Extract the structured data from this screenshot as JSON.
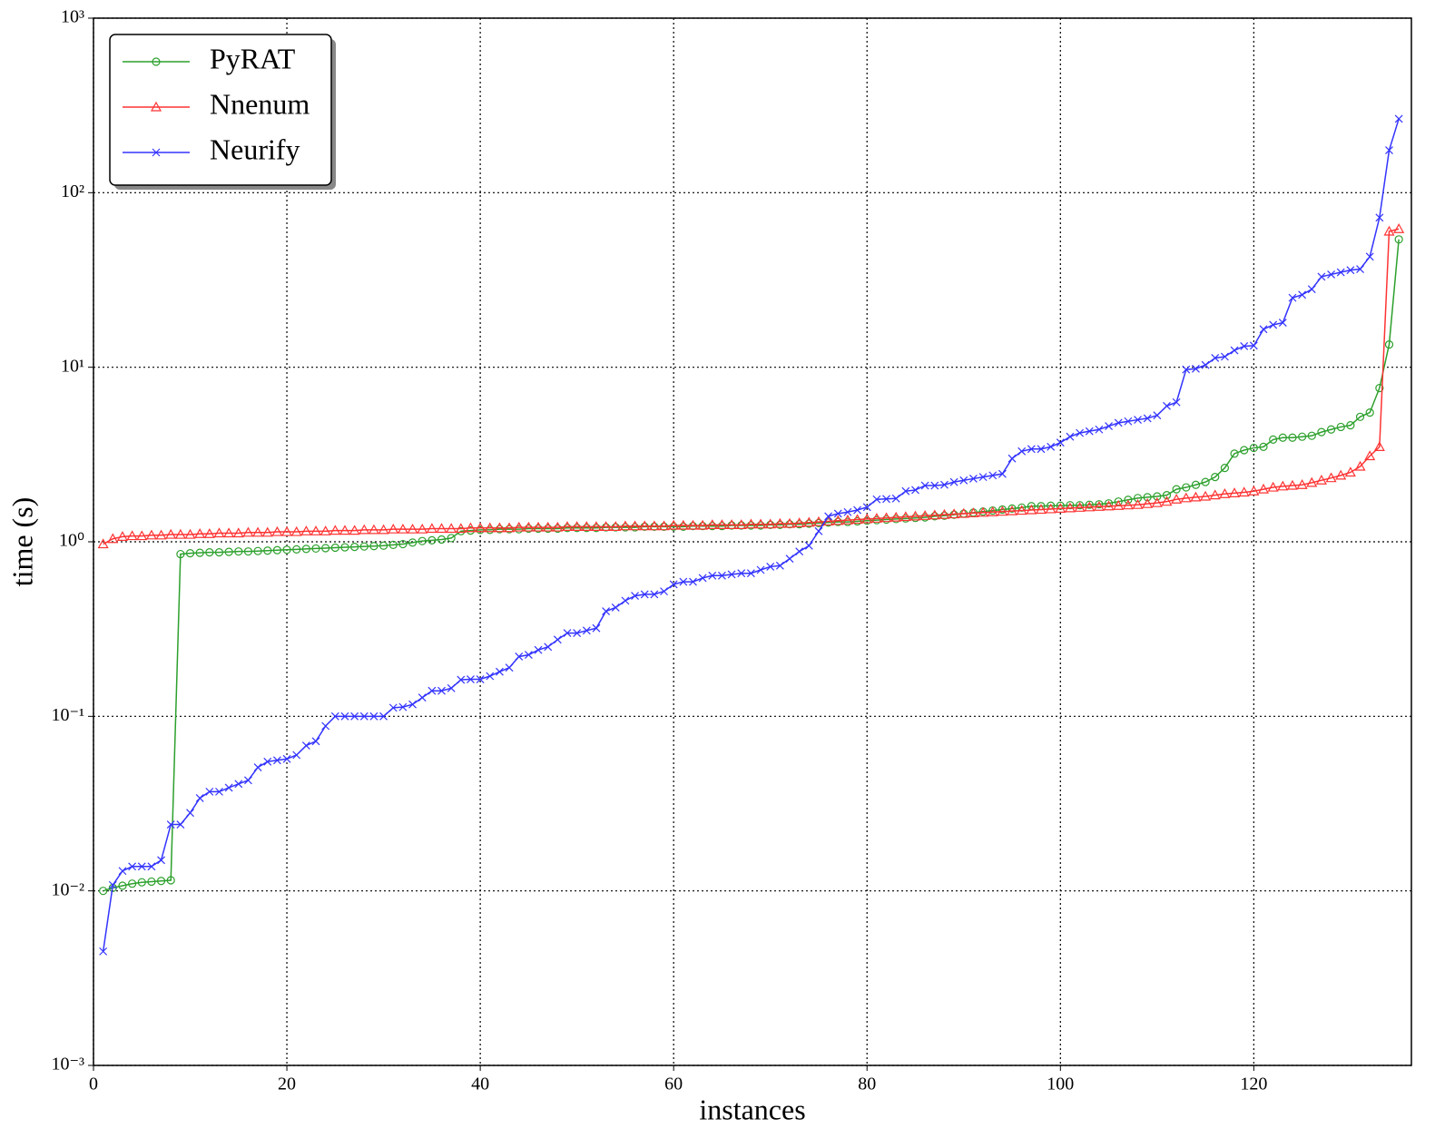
{
  "chart_data": {
    "type": "line",
    "x_label": "instances",
    "y_label": "time (s)",
    "x": [
      1,
      2,
      3,
      4,
      5,
      6,
      7,
      8,
      9,
      10,
      11,
      12,
      13,
      14,
      15,
      16,
      17,
      18,
      19,
      20,
      21,
      22,
      23,
      24,
      25,
      26,
      27,
      28,
      29,
      30,
      31,
      32,
      33,
      34,
      35,
      36,
      37,
      38,
      39,
      40,
      41,
      42,
      43,
      44,
      45,
      46,
      47,
      48,
      49,
      50,
      51,
      52,
      53,
      54,
      55,
      56,
      57,
      58,
      59,
      60,
      61,
      62,
      63,
      64,
      65,
      66,
      67,
      68,
      69,
      70,
      71,
      72,
      73,
      74,
      75,
      76,
      77,
      78,
      79,
      80,
      81,
      82,
      83,
      84,
      85,
      86,
      87,
      88,
      89,
      90,
      91,
      92,
      93,
      94,
      95,
      96,
      97,
      98,
      99,
      100,
      101,
      102,
      103,
      104,
      105,
      106,
      107,
      108,
      109,
      110,
      111,
      112,
      113,
      114,
      115,
      116,
      117,
      118,
      119,
      120,
      121,
      122,
      123,
      124,
      125,
      126,
      127,
      128,
      129,
      130,
      131,
      132,
      133,
      134,
      135
    ],
    "series": [
      {
        "name": "PyRAT",
        "color": "#2ca02c",
        "marker": "circle",
        "values": [
          0.01,
          0.0104,
          0.0107,
          0.011,
          0.0112,
          0.0113,
          0.0114,
          0.0115,
          0.85,
          0.86,
          0.865,
          0.87,
          0.87,
          0.875,
          0.88,
          0.88,
          0.885,
          0.89,
          0.895,
          0.9,
          0.905,
          0.91,
          0.915,
          0.92,
          0.925,
          0.93,
          0.935,
          0.94,
          0.945,
          0.95,
          0.96,
          0.97,
          0.99,
          1.01,
          1.02,
          1.03,
          1.05,
          1.15,
          1.16,
          1.17,
          1.17,
          1.18,
          1.18,
          1.18,
          1.19,
          1.19,
          1.19,
          1.19,
          1.2,
          1.2,
          1.2,
          1.2,
          1.21,
          1.21,
          1.21,
          1.21,
          1.22,
          1.22,
          1.22,
          1.22,
          1.22,
          1.23,
          1.23,
          1.23,
          1.23,
          1.24,
          1.24,
          1.24,
          1.24,
          1.25,
          1.25,
          1.26,
          1.26,
          1.27,
          1.28,
          1.29,
          1.3,
          1.3,
          1.31,
          1.32,
          1.33,
          1.34,
          1.35,
          1.36,
          1.37,
          1.38,
          1.4,
          1.41,
          1.43,
          1.45,
          1.47,
          1.49,
          1.51,
          1.53,
          1.55,
          1.57,
          1.6,
          1.6,
          1.61,
          1.61,
          1.62,
          1.62,
          1.63,
          1.64,
          1.66,
          1.7,
          1.74,
          1.78,
          1.8,
          1.82,
          1.85,
          2.0,
          2.05,
          2.12,
          2.2,
          2.35,
          2.65,
          3.2,
          3.35,
          3.45,
          3.5,
          3.85,
          3.95,
          3.95,
          4.0,
          4.05,
          4.25,
          4.4,
          4.55,
          4.65,
          5.2,
          5.5,
          7.6,
          13.5,
          54
        ]
      },
      {
        "name": "Nnenum",
        "color": "#ff3333",
        "marker": "triangle",
        "values": [
          0.97,
          1.04,
          1.07,
          1.08,
          1.08,
          1.09,
          1.09,
          1.1,
          1.1,
          1.1,
          1.11,
          1.11,
          1.12,
          1.12,
          1.12,
          1.13,
          1.13,
          1.13,
          1.14,
          1.14,
          1.14,
          1.15,
          1.15,
          1.15,
          1.16,
          1.16,
          1.16,
          1.17,
          1.17,
          1.17,
          1.18,
          1.18,
          1.18,
          1.18,
          1.19,
          1.19,
          1.19,
          1.19,
          1.2,
          1.2,
          1.2,
          1.2,
          1.2,
          1.21,
          1.21,
          1.21,
          1.21,
          1.21,
          1.22,
          1.22,
          1.22,
          1.22,
          1.22,
          1.22,
          1.23,
          1.23,
          1.23,
          1.23,
          1.23,
          1.24,
          1.24,
          1.24,
          1.24,
          1.25,
          1.25,
          1.25,
          1.25,
          1.26,
          1.26,
          1.26,
          1.27,
          1.27,
          1.28,
          1.29,
          1.3,
          1.31,
          1.32,
          1.33,
          1.34,
          1.35,
          1.36,
          1.37,
          1.38,
          1.39,
          1.4,
          1.41,
          1.42,
          1.43,
          1.44,
          1.45,
          1.46,
          1.47,
          1.48,
          1.49,
          1.5,
          1.51,
          1.52,
          1.53,
          1.54,
          1.55,
          1.56,
          1.57,
          1.58,
          1.59,
          1.6,
          1.61,
          1.62,
          1.63,
          1.65,
          1.67,
          1.7,
          1.75,
          1.78,
          1.8,
          1.82,
          1.85,
          1.88,
          1.9,
          1.92,
          1.95,
          2.0,
          2.05,
          2.08,
          2.1,
          2.12,
          2.18,
          2.25,
          2.32,
          2.4,
          2.5,
          2.7,
          3.1,
          3.5,
          60,
          62
        ]
      },
      {
        "name": "Neurify",
        "color": "#3333ff",
        "marker": "x",
        "values": [
          0.0045,
          0.0108,
          0.013,
          0.0138,
          0.0138,
          0.0138,
          0.015,
          0.024,
          0.024,
          0.028,
          0.034,
          0.037,
          0.037,
          0.039,
          0.041,
          0.043,
          0.051,
          0.055,
          0.056,
          0.057,
          0.06,
          0.068,
          0.072,
          0.088,
          0.1,
          0.1,
          0.1,
          0.1,
          0.1,
          0.1,
          0.112,
          0.113,
          0.117,
          0.128,
          0.14,
          0.14,
          0.145,
          0.162,
          0.163,
          0.163,
          0.17,
          0.18,
          0.19,
          0.22,
          0.225,
          0.24,
          0.25,
          0.275,
          0.3,
          0.3,
          0.31,
          0.32,
          0.4,
          0.42,
          0.46,
          0.49,
          0.5,
          0.5,
          0.52,
          0.57,
          0.59,
          0.59,
          0.62,
          0.64,
          0.64,
          0.65,
          0.66,
          0.66,
          0.69,
          0.72,
          0.73,
          0.8,
          0.88,
          0.95,
          1.15,
          1.4,
          1.45,
          1.48,
          1.52,
          1.58,
          1.75,
          1.76,
          1.77,
          1.95,
          1.98,
          2.1,
          2.1,
          2.12,
          2.2,
          2.25,
          2.3,
          2.35,
          2.4,
          2.45,
          3.0,
          3.3,
          3.4,
          3.4,
          3.5,
          3.7,
          4.0,
          4.2,
          4.3,
          4.4,
          4.6,
          4.8,
          4.9,
          5.0,
          5.1,
          5.3,
          6.0,
          6.3,
          9.7,
          9.8,
          10.3,
          11.3,
          11.5,
          12.5,
          13.2,
          13.3,
          16.5,
          17.5,
          18,
          25,
          26,
          28,
          33,
          34,
          35,
          36,
          36.5,
          43,
          72,
          175,
          265
        ]
      }
    ],
    "xlim": [
      0,
      136.3
    ],
    "xticks": [
      0,
      20,
      40,
      60,
      80,
      100,
      120
    ],
    "ylim": [
      0.001,
      1000
    ],
    "y_log": true,
    "yticks": [
      {
        "value": 0.001,
        "label": "10⁻³"
      },
      {
        "value": 0.01,
        "label": "10⁻²"
      },
      {
        "value": 0.1,
        "label": "10⁻¹"
      },
      {
        "value": 1,
        "label": "10⁰"
      },
      {
        "value": 10,
        "label": "10¹"
      },
      {
        "value": 100,
        "label": "10²"
      },
      {
        "value": 1000,
        "label": "10³"
      }
    ],
    "grid": true,
    "legend_loc": "upper left"
  }
}
